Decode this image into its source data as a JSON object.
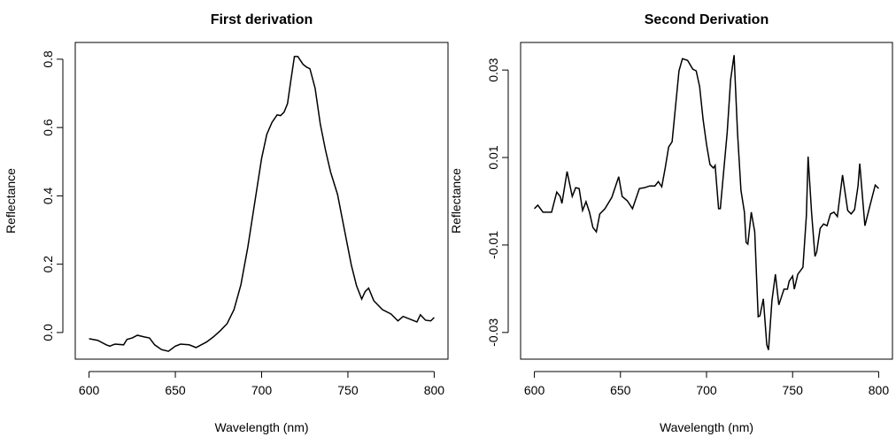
{
  "chart_data": [
    {
      "type": "line",
      "title": "First derivation",
      "xlabel": "Wavelength (nm)",
      "ylabel": "Reflectance",
      "color": "#000000",
      "x": [
        600,
        605,
        610,
        612,
        615,
        620,
        622,
        625,
        628,
        632,
        635,
        638,
        642,
        646,
        650,
        653,
        658,
        662,
        668,
        672,
        676,
        680,
        684,
        688,
        692,
        696,
        700,
        703,
        706,
        709,
        711,
        713,
        715,
        717,
        719,
        721,
        722,
        724,
        726,
        728,
        731,
        734,
        737,
        740,
        744,
        748,
        752,
        755,
        758,
        760,
        762,
        765,
        770,
        775,
        779,
        782,
        786,
        790,
        792,
        795,
        798,
        800
      ],
      "values": [
        -0.018,
        -0.023,
        -0.036,
        -0.04,
        -0.034,
        -0.036,
        -0.02,
        -0.016,
        -0.008,
        -0.013,
        -0.016,
        -0.036,
        -0.05,
        -0.055,
        -0.04,
        -0.034,
        -0.036,
        -0.044,
        -0.028,
        -0.013,
        0.005,
        0.026,
        0.067,
        0.14,
        0.25,
        0.38,
        0.51,
        0.58,
        0.615,
        0.637,
        0.635,
        0.645,
        0.67,
        0.74,
        0.808,
        0.808,
        0.8,
        0.785,
        0.777,
        0.772,
        0.715,
        0.61,
        0.534,
        0.469,
        0.404,
        0.3,
        0.197,
        0.137,
        0.098,
        0.12,
        0.13,
        0.093,
        0.067,
        0.054,
        0.034,
        0.047,
        0.039,
        0.031,
        0.052,
        0.036,
        0.034,
        0.044
      ],
      "xlim": [
        592,
        808
      ],
      "ylim": [
        -0.078,
        0.849
      ],
      "xticks": [
        600,
        650,
        700,
        750,
        800
      ],
      "yticks": [
        {
          "value": 0,
          "label": "0.0"
        },
        0.2,
        0.4,
        0.6,
        0.8
      ]
    },
    {
      "type": "line",
      "title": "Second Derivation",
      "xlabel": "Wavelength (nm)",
      "ylabel": "Reflectance",
      "color": "#000000",
      "x": [
        600,
        602,
        605,
        610,
        613,
        615,
        616,
        619,
        622,
        624,
        626,
        628,
        630,
        632,
        634,
        636,
        638,
        641,
        645,
        649,
        651,
        654,
        657,
        661,
        664,
        667,
        670,
        672,
        674,
        676,
        678,
        680,
        682,
        684,
        686,
        689,
        692,
        694,
        696,
        698,
        700,
        702,
        704,
        705,
        707,
        708,
        710,
        712,
        714,
        716,
        718,
        720,
        722,
        723,
        724,
        726,
        728,
        730,
        731,
        733,
        735,
        736,
        738,
        740,
        742,
        745,
        747,
        748,
        750,
        751,
        753,
        756,
        758,
        759,
        761,
        763,
        764,
        766,
        768,
        770,
        772,
        774,
        776,
        779,
        782,
        784,
        786,
        788,
        789,
        791,
        792,
        795,
        798,
        800
      ],
      "values": [
        -0.0017,
        -0.0009,
        -0.0025,
        -0.0025,
        0.0021,
        0.0011,
        -0.0005,
        0.0068,
        0.0011,
        0.0031,
        0.0029,
        -0.0021,
        -0.0001,
        -0.0025,
        -0.006,
        -0.007,
        -0.0029,
        -0.0017,
        0.0009,
        0.0056,
        0.0011,
        0.0001,
        -0.0017,
        0.0029,
        0.0031,
        0.0035,
        0.0035,
        0.0045,
        0.0033,
        0.0076,
        0.0124,
        0.0136,
        0.0217,
        0.0298,
        0.0326,
        0.0322,
        0.0302,
        0.0298,
        0.0262,
        0.0187,
        0.013,
        0.0084,
        0.0076,
        0.0082,
        -0.0017,
        -0.0017,
        0.007,
        0.0157,
        0.0278,
        0.0334,
        0.0157,
        0.0025,
        -0.0025,
        -0.0094,
        -0.0098,
        -0.0025,
        -0.007,
        -0.0264,
        -0.0262,
        -0.0223,
        -0.0328,
        -0.034,
        -0.0227,
        -0.0167,
        -0.0237,
        -0.0201,
        -0.0201,
        -0.0183,
        -0.0171,
        -0.0201,
        -0.0167,
        -0.0151,
        -0.0033,
        0.0102,
        -0.0025,
        -0.0126,
        -0.0116,
        -0.0062,
        -0.0052,
        -0.0056,
        -0.0029,
        -0.0025,
        -0.0035,
        0.006,
        -0.0021,
        -0.0029,
        -0.0019,
        0.0035,
        0.0086,
        -0.0009,
        -0.0056,
        -0.0009,
        0.0037,
        0.0029
      ],
      "xlim": [
        592,
        808
      ],
      "ylim": [
        -0.0361,
        0.0363
      ],
      "xticks": [
        600,
        650,
        700,
        750,
        800
      ],
      "yticks": [
        -0.03,
        -0.01,
        0.01,
        0.03
      ]
    }
  ]
}
